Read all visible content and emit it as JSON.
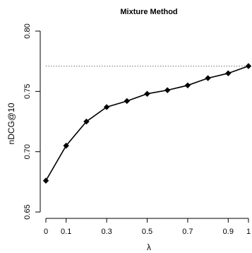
{
  "chart_data": {
    "type": "line",
    "title": "Mixture Method",
    "xlabel": "λ",
    "ylabel": "nDCG@10",
    "x": [
      0,
      0.1,
      0.2,
      0.3,
      0.4,
      0.5,
      0.6,
      0.7,
      0.8,
      0.9,
      1.0
    ],
    "x_tick_values": [
      0,
      0.1,
      0.3,
      0.5,
      0.7,
      0.9,
      1
    ],
    "x_tick_labels": [
      "0",
      "0.1",
      "0.3",
      "0.5",
      "0.7",
      "0.9",
      "1"
    ],
    "xlim": [
      0,
      1
    ],
    "y_tick_values": [
      0.65,
      0.7,
      0.75,
      0.8
    ],
    "y_tick_labels": [
      "0.65",
      "0.70",
      "0.75",
      "0.80"
    ],
    "ylim": [
      0.65,
      0.8
    ],
    "series": [
      {
        "values": [
          0.676,
          0.705,
          0.725,
          0.737,
          0.742,
          0.748,
          0.751,
          0.755,
          0.761,
          0.765,
          0.771
        ],
        "marker": "diamond",
        "color": "#000000"
      }
    ],
    "reference_line": {
      "y": 0.771,
      "style": "dotted",
      "color": "#555555"
    },
    "grid": false,
    "legend": "none"
  }
}
